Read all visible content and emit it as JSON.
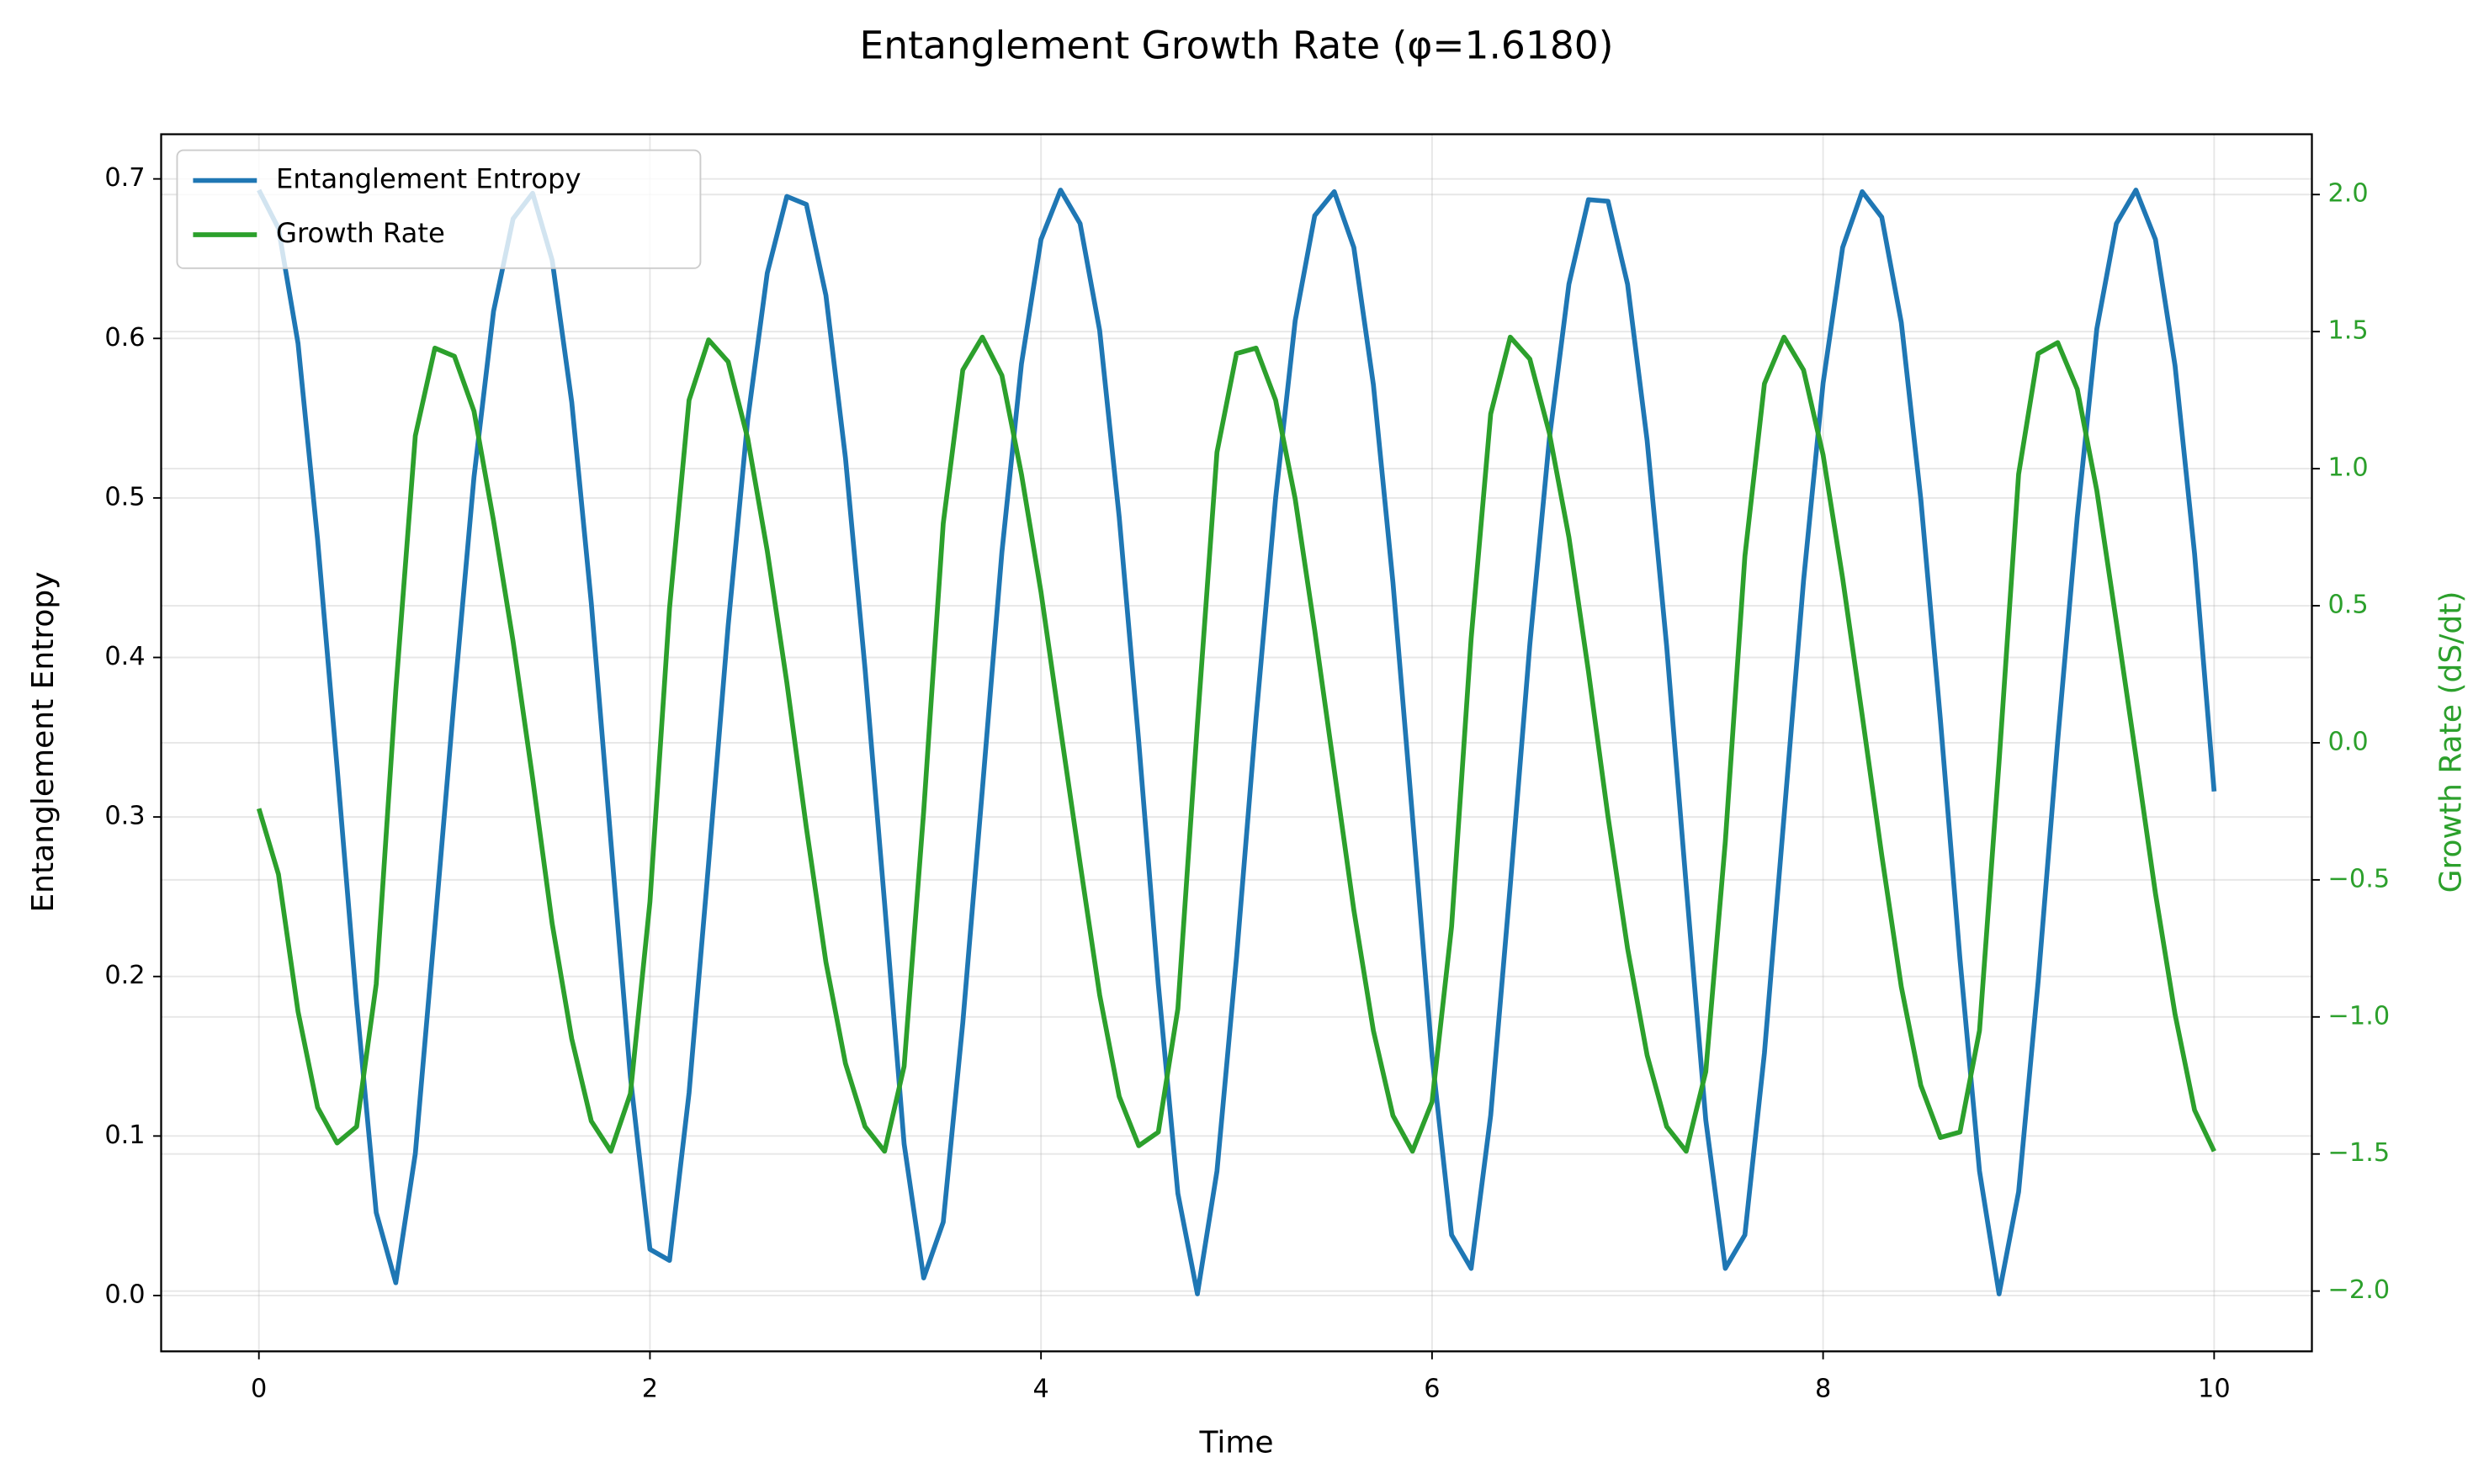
{
  "chart_data": {
    "type": "line",
    "title": "Entanglement Growth Rate (φ=1.6180)",
    "x_label": "Time",
    "y_label": "Entanglement Entropy",
    "y2_label": "Growth Rate (dS/dt)",
    "x": [
      0,
      0.1,
      0.2,
      0.3,
      0.4,
      0.5,
      0.6,
      0.7,
      0.8,
      0.9,
      1,
      1.1,
      1.2,
      1.3,
      1.4,
      1.5,
      1.6,
      1.7,
      1.8,
      1.9,
      2,
      2.1,
      2.2,
      2.3,
      2.4,
      2.5,
      2.6,
      2.7,
      2.8,
      2.9,
      3,
      3.1,
      3.2,
      3.3,
      3.4,
      3.5,
      3.6,
      3.7,
      3.8,
      3.9,
      4,
      4.1,
      4.2,
      4.3,
      4.4,
      4.5,
      4.6,
      4.7,
      4.8,
      4.9,
      5,
      5.1,
      5.2,
      5.3,
      5.4,
      5.5,
      5.6,
      5.7,
      5.8,
      5.9,
      6,
      6.1,
      6.2,
      6.3,
      6.4,
      6.5,
      6.6,
      6.7,
      6.8,
      6.9,
      7,
      7.1,
      7.2,
      7.3,
      7.4,
      7.5,
      7.6,
      7.7,
      7.8,
      7.9,
      8,
      8.1,
      8.2,
      8.3,
      8.4,
      8.5,
      8.6,
      8.7,
      8.8,
      8.9,
      9,
      9.1,
      9.2,
      9.3,
      9.4,
      9.5,
      9.6,
      9.7,
      9.8,
      9.9,
      10
    ],
    "series": [
      {
        "name": "Entanglement Entropy",
        "color": "#1f77b4",
        "axis": "y",
        "values": [
          0.693,
          0.669,
          0.597,
          0.474,
          0.331,
          0.183,
          0.052,
          0.008,
          0.089,
          0.231,
          0.376,
          0.513,
          0.617,
          0.675,
          0.691,
          0.649,
          0.56,
          0.434,
          0.285,
          0.137,
          0.029,
          0.022,
          0.127,
          0.271,
          0.42,
          0.549,
          0.641,
          0.689,
          0.684,
          0.627,
          0.525,
          0.393,
          0.246,
          0.095,
          0.011,
          0.046,
          0.171,
          0.317,
          0.466,
          0.584,
          0.662,
          0.693,
          0.672,
          0.605,
          0.488,
          0.347,
          0.195,
          0.064,
          0.001,
          0.078,
          0.212,
          0.362,
          0.5,
          0.611,
          0.677,
          0.692,
          0.657,
          0.571,
          0.447,
          0.3,
          0.15,
          0.038,
          0.017,
          0.113,
          0.257,
          0.408,
          0.537,
          0.634,
          0.687,
          0.686,
          0.634,
          0.536,
          0.407,
          0.257,
          0.11,
          0.017,
          0.038,
          0.152,
          0.3,
          0.448,
          0.572,
          0.657,
          0.692,
          0.676,
          0.61,
          0.499,
          0.361,
          0.211,
          0.078,
          0.001,
          0.065,
          0.197,
          0.348,
          0.488,
          0.606,
          0.672,
          0.693,
          0.662,
          0.583,
          0.465,
          0.316
        ]
      },
      {
        "name": "Growth Rate",
        "color": "#2ca02c",
        "axis": "y2",
        "values": [
          -0.24,
          -0.48,
          -0.98,
          -1.33,
          -1.46,
          -1.4,
          -0.88,
          0.19,
          1.12,
          1.44,
          1.41,
          1.21,
          0.81,
          0.37,
          -0.13,
          -0.66,
          -1.08,
          -1.38,
          -1.49,
          -1.28,
          -0.58,
          0.49,
          1.25,
          1.47,
          1.39,
          1.11,
          0.7,
          0.22,
          -0.31,
          -0.8,
          -1.17,
          -1.4,
          -1.49,
          -1.18,
          -0.25,
          0.8,
          1.36,
          1.48,
          1.34,
          0.98,
          0.55,
          0.05,
          -0.44,
          -0.92,
          -1.29,
          -1.47,
          -1.42,
          -0.97,
          0.07,
          1.06,
          1.42,
          1.44,
          1.25,
          0.89,
          0.41,
          -0.1,
          -0.61,
          -1.05,
          -1.36,
          -1.49,
          -1.31,
          -0.67,
          0.38,
          1.2,
          1.48,
          1.4,
          1.13,
          0.75,
          0.26,
          -0.27,
          -0.75,
          -1.14,
          -1.4,
          -1.49,
          -1.2,
          -0.36,
          0.68,
          1.31,
          1.48,
          1.36,
          1.05,
          0.6,
          0.1,
          -0.41,
          -0.89,
          -1.25,
          -1.44,
          -1.42,
          -1.05,
          -0.07,
          0.98,
          1.42,
          1.46,
          1.29,
          0.92,
          0.44,
          -0.05,
          -0.55,
          -0.99,
          -1.34,
          -1.49
        ]
      }
    ],
    "xlim": [
      -0.5,
      10.5
    ],
    "xticks": [
      0,
      2,
      4,
      6,
      8,
      10
    ],
    "ylim": [
      -0.035,
      0.728
    ],
    "yticks": [
      {
        "value": 0,
        "label": "0.0"
      },
      0.1,
      0.2,
      0.3,
      0.4,
      0.5,
      0.6,
      0.7
    ],
    "y2lim": [
      -2.22,
      2.22
    ],
    "y2ticks": [
      {
        "value": -2,
        "label": "−2.0"
      },
      {
        "value": -1.5,
        "label": "−1.5"
      },
      {
        "value": -1,
        "label": "−1.0"
      },
      {
        "value": -0.5,
        "label": "−0.5"
      },
      {
        "value": 0,
        "label": "0.0"
      },
      {
        "value": 0.5,
        "label": "0.5"
      },
      {
        "value": 1,
        "label": "1.0"
      },
      {
        "value": 1.5,
        "label": "1.5"
      },
      {
        "value": 2,
        "label": "2.0"
      }
    ],
    "grid": true,
    "legend": "upper-left"
  }
}
